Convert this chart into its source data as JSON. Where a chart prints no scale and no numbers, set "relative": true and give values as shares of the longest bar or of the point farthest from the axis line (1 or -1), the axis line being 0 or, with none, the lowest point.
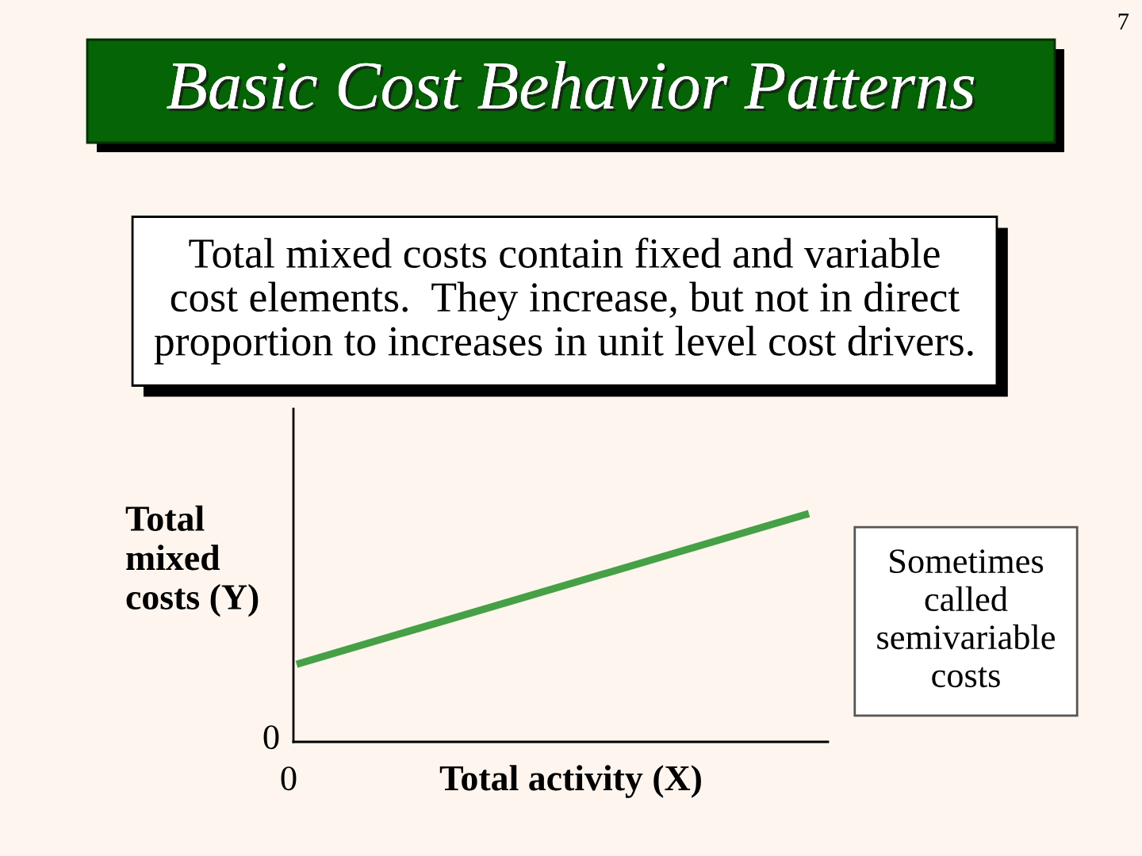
{
  "chart_data": {
    "type": "line",
    "title": "Basic Cost Behavior Patterns",
    "subtitle": "Total mixed costs contain fixed and variable\ncost elements.  They increase, but not in direct\nproportion to increases in unit level cost drivers.",
    "xlabel": "Total activity (X)",
    "ylabel": "Total\nmixed\ncosts (Y)",
    "categories": [
      null,
      null
    ],
    "series": [
      {
        "color": "#46a046",
        "values": [
          0.34,
          1
        ]
      }
    ],
    "relative": true,
    "grid": false,
    "marker": "none",
    "line_style": "solid",
    "annotations": [
      "0",
      "0",
      "Sometimes\ncalled\nsemivariable\ncosts",
      "7"
    ]
  }
}
